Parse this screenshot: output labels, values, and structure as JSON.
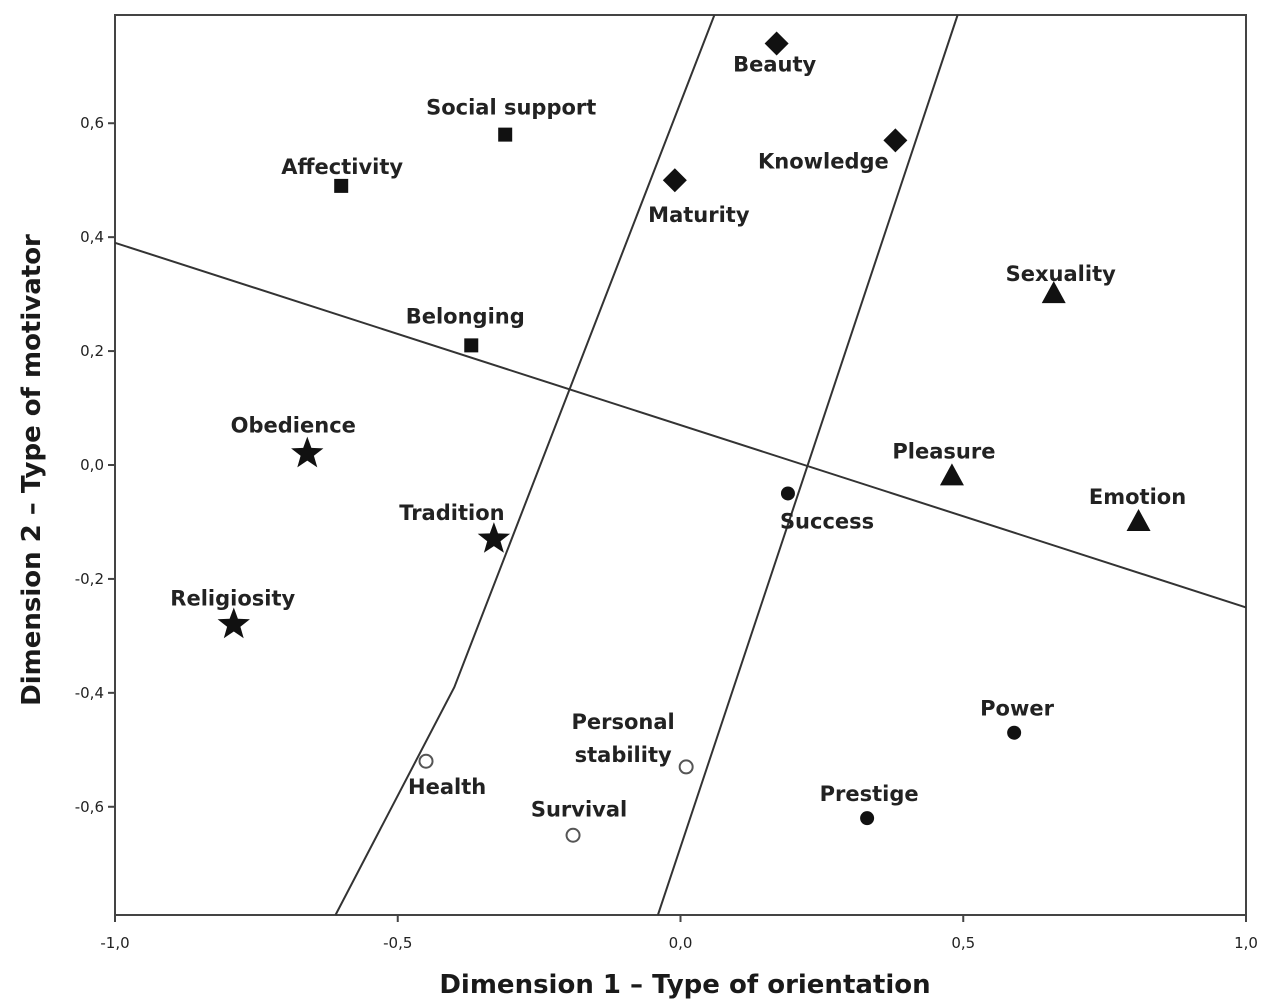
{
  "chart_data": {
    "type": "scatter",
    "title": "",
    "xlabel": "Dimension 1 – Type of orientation",
    "ylabel": "Dimension 2 – Type of motivator",
    "xlim": [
      -1.0,
      1.0
    ],
    "ylim": [
      -0.79,
      0.79
    ],
    "x_ticks": [
      {
        "value": -1.0,
        "label": "-1,0"
      },
      {
        "value": -0.5,
        "label": "-0,5"
      },
      {
        "value": 0.0,
        "label": "0,0"
      },
      {
        "value": 0.5,
        "label": "0,5"
      },
      {
        "value": 1.0,
        "label": "1,0"
      }
    ],
    "y_ticks": [
      {
        "value": 0.6,
        "label": "0,6"
      },
      {
        "value": 0.4,
        "label": "0,4"
      },
      {
        "value": 0.2,
        "label": "0,2"
      },
      {
        "value": 0.0,
        "label": "0,0"
      },
      {
        "value": -0.2,
        "label": "-0,2"
      },
      {
        "value": -0.4,
        "label": "-0,4"
      },
      {
        "value": -0.6,
        "label": "-0,6"
      }
    ],
    "grid": false,
    "legend": "none",
    "series": [
      {
        "marker": "square",
        "color": "#111111",
        "points": [
          {
            "label": "Social support",
            "x": -0.31,
            "y": 0.58
          },
          {
            "label": "Affectivity",
            "x": -0.6,
            "y": 0.49
          },
          {
            "label": "Belonging",
            "x": -0.37,
            "y": 0.21
          }
        ]
      },
      {
        "marker": "diamond",
        "color": "#111111",
        "points": [
          {
            "label": "Beauty",
            "x": 0.17,
            "y": 0.74
          },
          {
            "label": "Knowledge",
            "x": 0.38,
            "y": 0.57
          },
          {
            "label": "Maturity",
            "x": -0.01,
            "y": 0.5
          }
        ]
      },
      {
        "marker": "triangle",
        "color": "#111111",
        "points": [
          {
            "label": "Sexuality",
            "x": 0.66,
            "y": 0.3
          },
          {
            "label": "Pleasure",
            "x": 0.48,
            "y": -0.02
          },
          {
            "label": "Emotion",
            "x": 0.81,
            "y": -0.1
          }
        ]
      },
      {
        "marker": "star",
        "color": "#111111",
        "points": [
          {
            "label": "Obedience",
            "x": -0.66,
            "y": 0.02
          },
          {
            "label": "Tradition",
            "x": -0.33,
            "y": -0.13
          },
          {
            "label": "Religiosity",
            "x": -0.79,
            "y": -0.28
          }
        ]
      },
      {
        "marker": "filled-circle",
        "color": "#111111",
        "points": [
          {
            "label": "Success",
            "x": 0.19,
            "y": -0.05
          },
          {
            "label": "Power",
            "x": 0.59,
            "y": -0.47
          },
          {
            "label": "Prestige",
            "x": 0.33,
            "y": -0.62
          }
        ]
      },
      {
        "marker": "open-circle",
        "color": "#555555",
        "points": [
          {
            "label": "Health",
            "x": -0.45,
            "y": -0.52
          },
          {
            "label": "Personal stability",
            "x": 0.01,
            "y": -0.53
          },
          {
            "label": "Survival",
            "x": -0.19,
            "y": -0.65
          }
        ]
      }
    ],
    "separator_lines": [
      {
        "points": [
          [
            -1.0,
            0.39
          ],
          [
            1.0,
            -0.25
          ]
        ]
      },
      {
        "points": [
          [
            -0.61,
            -0.79
          ],
          [
            -0.4,
            -0.39
          ],
          [
            0.06,
            0.79
          ]
        ]
      },
      {
        "points": [
          [
            -0.04,
            -0.79
          ],
          [
            0.49,
            0.79
          ]
        ]
      }
    ]
  }
}
